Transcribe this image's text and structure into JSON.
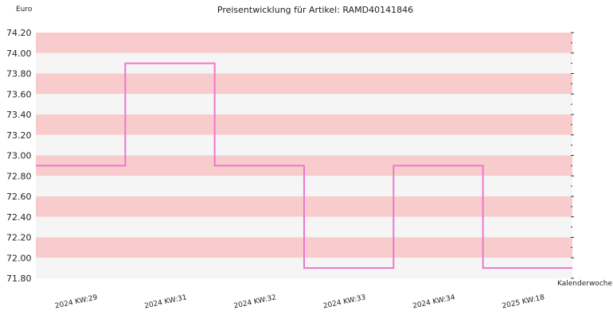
{
  "chart_data": {
    "type": "line",
    "step": true,
    "title": "Preisentwicklung für Artikel: RAMD40141846",
    "ylabel": "Euro",
    "xlabel": "Kalenderwoche",
    "ylim": [
      71.8,
      74.2
    ],
    "yticks": [
      "74.20",
      "74.00",
      "73.80",
      "73.60",
      "73.40",
      "73.20",
      "73.00",
      "72.80",
      "72.60",
      "72.40",
      "72.20",
      "72.00",
      "71.80"
    ],
    "categories": [
      "2024 KW:29",
      "2024 KW:31",
      "2024 KW:32",
      "2024 KW:33",
      "2024 KW:34",
      "2025 KW:18"
    ],
    "series": [
      {
        "values": [
          72.9,
          73.9,
          72.9,
          71.9,
          72.9,
          71.9
        ]
      }
    ],
    "colors": {
      "band_a": "#f8cccc",
      "band_b": "#f5f5f5",
      "line": "#ee77cc"
    },
    "grid": true
  }
}
